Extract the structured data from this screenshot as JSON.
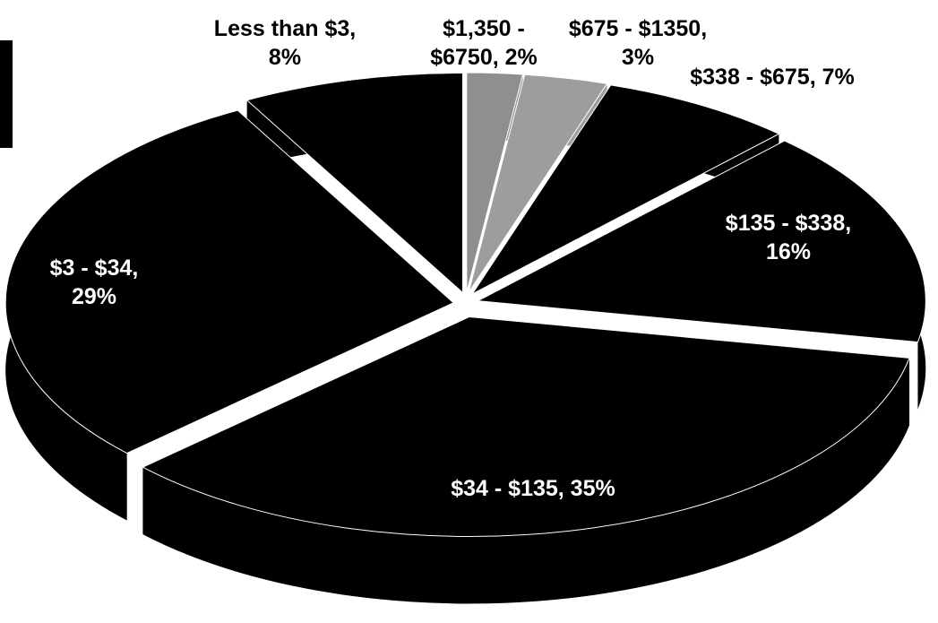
{
  "chart_data": {
    "type": "pie",
    "values": [
      2,
      3,
      7,
      16,
      35,
      29,
      8
    ],
    "value_labels": [
      "$1,350 - $6750, 2%",
      "$675 - $1350, 3%",
      "$338 - $675, 7%",
      "$135 - $338, 16%",
      "$34 - $135, 35%",
      "$3 - $34, 29%",
      "Less than $3, 8%"
    ],
    "colors": [
      "#8f8f8f",
      "#9d9d9d",
      "#000000",
      "#000000",
      "#000000",
      "#000000",
      "#000000"
    ]
  }
}
